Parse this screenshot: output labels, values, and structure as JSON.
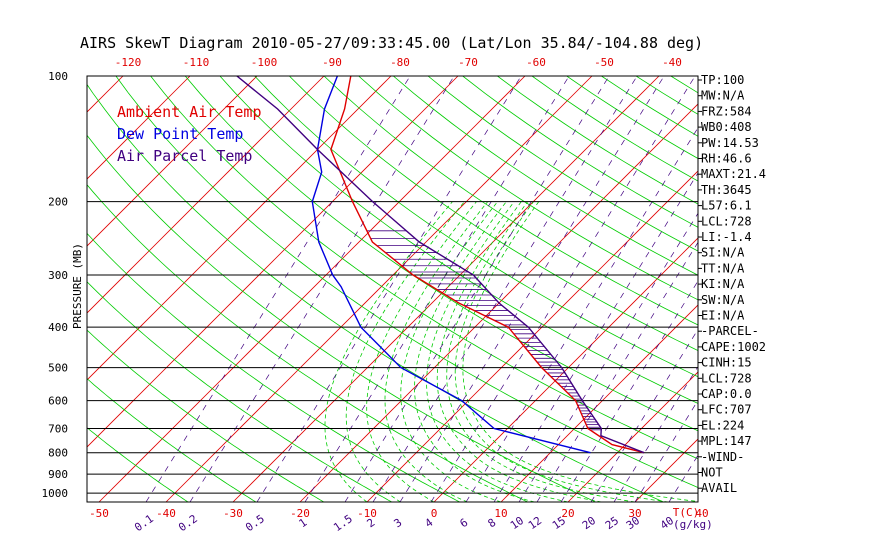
{
  "chart_data": {
    "type": "line",
    "title": "AIRS SkewT Diagram 2010-05-27/09:33:45.00 (Lat/Lon 35.84/-104.88 deg)",
    "ylabel": "PRESSURE (MB)",
    "xlabel": "T(C)",
    "mixing_ratio_unit": "(g/kg)",
    "pressure_ticks": [
      100,
      200,
      300,
      400,
      500,
      600,
      700,
      800,
      900,
      1000
    ],
    "bottom_temp_ticks": [
      -50,
      -40,
      -30,
      -20,
      -10,
      0,
      10,
      20,
      30,
      40
    ],
    "top_temp_ticks": [
      -120,
      -110,
      -100,
      -90,
      -80,
      -70,
      -60,
      -50,
      -40
    ],
    "mixing_ratio_labels": [
      "0.1",
      "0.2",
      "0.5",
      "1",
      "1.5",
      "2",
      "3",
      "4",
      "6",
      "8",
      "10",
      "12",
      "15",
      "20",
      "25",
      "30",
      "40"
    ],
    "legend": [
      {
        "label": "Ambient Air Temp",
        "color": "#e00000"
      },
      {
        "label": "Dew Point Temp",
        "color": "#0000e0"
      },
      {
        "label": "Air Parcel Temp",
        "color": "#400080"
      }
    ],
    "series": [
      {
        "name": "Ambient Air Temp",
        "color": "#e00000",
        "points": [
          [
            800,
            24
          ],
          [
            765,
            18
          ],
          [
            700,
            12
          ],
          [
            600,
            6
          ],
          [
            500,
            -4
          ],
          [
            400,
            -15
          ],
          [
            350,
            -26
          ],
          [
            300,
            -37
          ],
          [
            250,
            -48
          ],
          [
            200,
            -57
          ],
          [
            150,
            -68
          ],
          [
            120,
            -72
          ],
          [
            100,
            -76
          ]
        ]
      },
      {
        "name": "Dew Point Temp",
        "color": "#0000e0",
        "points": [
          [
            800,
            16
          ],
          [
            700,
            -2
          ],
          [
            600,
            -11
          ],
          [
            500,
            -25
          ],
          [
            400,
            -37
          ],
          [
            320,
            -46
          ],
          [
            300,
            -49
          ],
          [
            250,
            -56
          ],
          [
            200,
            -63
          ],
          [
            170,
            -66
          ],
          [
            150,
            -70
          ],
          [
            120,
            -75
          ],
          [
            100,
            -78
          ]
        ]
      },
      {
        "name": "Air Parcel Temp",
        "color": "#400080",
        "points": [
          [
            800,
            24
          ],
          [
            728,
            15
          ],
          [
            700,
            14
          ],
          [
            600,
            7
          ],
          [
            500,
            -1
          ],
          [
            400,
            -12
          ],
          [
            350,
            -20
          ],
          [
            300,
            -28
          ],
          [
            250,
            -41
          ],
          [
            200,
            -54
          ],
          [
            150,
            -70
          ],
          [
            120,
            -82
          ],
          [
            100,
            -93
          ]
        ]
      }
    ],
    "colors": {
      "isotherm": "#e00000",
      "dry_adiabat": "#00cc00",
      "moist_adiabat": "#00cc00",
      "mixing_ratio": "#400080",
      "isobar": "#000000"
    }
  },
  "stats": [
    "TP:100",
    "MW:N/A",
    "FRZ:584",
    "WB0:408",
    "PW:14.53",
    "RH:46.6",
    "MAXT:21.4",
    "TH:3645",
    "L57:6.1",
    "LCL:728",
    "LI:-1.4",
    "SI:N/A",
    "TT:N/A",
    "KI:N/A",
    "SW:N/A",
    "EI:N/A",
    "-PARCEL-",
    "CAPE:1002",
    "CINH:15",
    "LCL:728",
    "CAP:0.0",
    "LFC:707",
    "EL:224",
    "MPL:147",
    "-WIND-",
    "NOT",
    "AVAIL"
  ]
}
